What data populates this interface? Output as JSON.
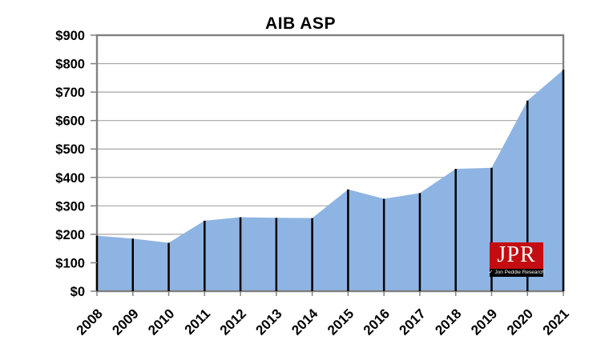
{
  "chart_data": {
    "type": "area",
    "title": "AIB ASP",
    "categories": [
      "2008",
      "2009",
      "2010",
      "2011",
      "2012",
      "2013",
      "2014",
      "2015",
      "2016",
      "2017",
      "2018",
      "2019",
      "2020",
      "2021"
    ],
    "values": [
      195,
      185,
      170,
      248,
      260,
      258,
      257,
      358,
      325,
      345,
      430,
      434,
      670,
      778
    ],
    "series": [
      {
        "name": "AIB ASP",
        "values": [
          195,
          185,
          170,
          248,
          260,
          258,
          257,
          358,
          325,
          345,
          430,
          434,
          670,
          778
        ]
      }
    ],
    "xlabel": "",
    "ylabel": "",
    "ylim": [
      0,
      900
    ],
    "ytick_values": [
      0,
      100,
      200,
      300,
      400,
      500,
      600,
      700,
      800,
      900
    ],
    "ytick_labels": [
      "$0",
      "$100",
      "$200",
      "$300",
      "$400",
      "$500",
      "$600",
      "$700",
      "$800",
      "$900"
    ],
    "grid": true,
    "legend_position": "none",
    "colors": {
      "area_fill": "#8EB4E3",
      "drop_line": "#000000",
      "axis_line": "#808080",
      "grid_line": "#A6A6A6",
      "text": "#000000",
      "background": "#FFFFFF"
    }
  },
  "logo": {
    "text": "JPR",
    "subtext": "Jon Peddie Research",
    "check_glyph": "✓",
    "colors": {
      "box": "#C40D11",
      "strip": "#000000",
      "text": "#FFFFFF"
    }
  }
}
